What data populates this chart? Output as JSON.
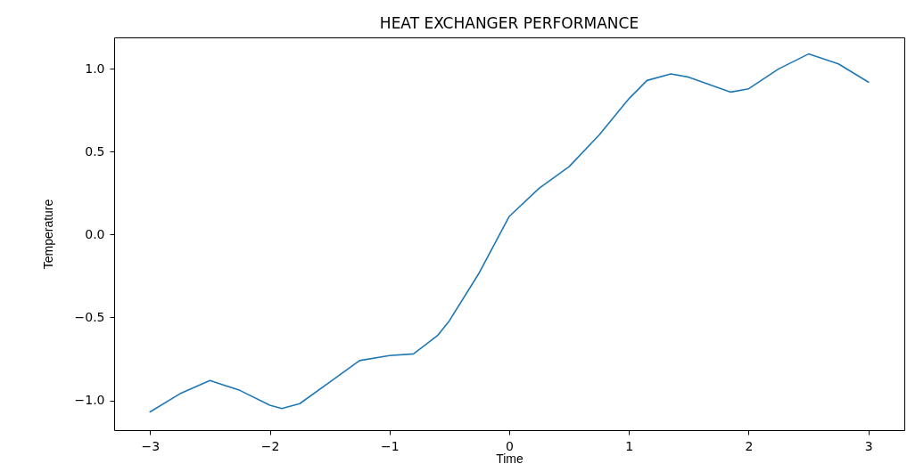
{
  "chart_data": {
    "type": "line",
    "title": "HEAT EXCHANGER PERFORMANCE",
    "xlabel": "Time",
    "ylabel": "Temperature",
    "x": [
      -3,
      -2.75,
      -2.5,
      -2.25,
      -2,
      -1.9,
      -1.75,
      -1.5,
      -1.25,
      -1,
      -0.8,
      -0.6,
      -0.5,
      -0.25,
      0,
      0.25,
      0.5,
      0.75,
      1,
      1.15,
      1.35,
      1.5,
      1.85,
      2,
      2.25,
      2.5,
      2.75,
      3
    ],
    "series": [
      {
        "color": "#1f77b4",
        "values": [
          -1.07,
          -0.96,
          -0.88,
          -0.94,
          -1.03,
          -1.05,
          -1.02,
          -0.89,
          -0.76,
          -0.73,
          -0.72,
          -0.61,
          -0.52,
          -0.23,
          0.11,
          0.28,
          0.41,
          0.6,
          0.82,
          0.93,
          0.97,
          0.95,
          0.86,
          0.88,
          1.0,
          1.09,
          1.03,
          0.92
        ]
      }
    ],
    "xlim": [
      -3.3,
      3.3
    ],
    "ylim": [
      -1.18,
      1.19
    ],
    "xticks": [
      {
        "value": -3,
        "label": "−3"
      },
      {
        "value": -2,
        "label": "−2"
      },
      {
        "value": -1,
        "label": "−1"
      },
      0,
      1,
      2,
      3
    ],
    "yticks": [
      {
        "value": -1,
        "label": "−1.0"
      },
      {
        "value": -0.5,
        "label": "−0.5"
      },
      {
        "value": 0,
        "label": "0.0"
      },
      {
        "value": 0.5,
        "label": "0.5"
      },
      {
        "value": 1,
        "label": "1.0"
      }
    ],
    "grid": false,
    "marker": "none",
    "line_style": "solid"
  }
}
